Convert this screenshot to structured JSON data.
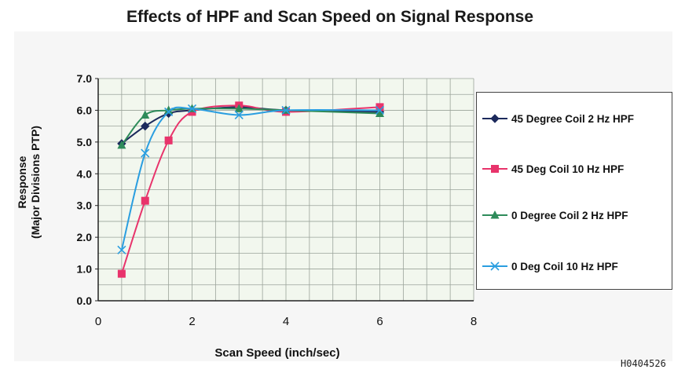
{
  "chart_data": {
    "type": "line",
    "title": "Effects of HPF and Scan Speed on Signal Response",
    "xlabel": "Scan Speed (inch/sec)",
    "ylabel_line1": "Response",
    "ylabel_line2": "(Major Divisions PTP)",
    "xlim": [
      0,
      8
    ],
    "ylim": [
      0,
      7
    ],
    "xticks": [
      "0",
      "2",
      "4",
      "6",
      "8"
    ],
    "yticks": [
      "0.0",
      "1.0",
      "2.0",
      "3.0",
      "4.0",
      "5.0",
      "6.0",
      "7.0"
    ],
    "grid": true,
    "legend_position": "right",
    "series": [
      {
        "name": "45 Degree Coil 2 Hz HPF",
        "color": "#1c2a5c",
        "marker": "diamond",
        "x": [
          0.5,
          1,
          1.5,
          2,
          3,
          4,
          6
        ],
        "y": [
          4.95,
          5.5,
          5.9,
          6.0,
          6.1,
          6.0,
          5.95
        ]
      },
      {
        "name": "45 Deg Coil 10 Hz HPF",
        "color": "#e8336b",
        "marker": "square",
        "x": [
          0.5,
          1,
          1.5,
          2,
          3,
          4,
          6
        ],
        "y": [
          0.85,
          3.15,
          5.05,
          5.95,
          6.15,
          5.95,
          6.1
        ]
      },
      {
        "name": "0 Degree Coil 2 Hz HPF",
        "color": "#2e8b5a",
        "marker": "triangle",
        "x": [
          0.5,
          1,
          1.5,
          2,
          3,
          4,
          6
        ],
        "y": [
          4.9,
          5.85,
          6.0,
          6.05,
          6.05,
          6.0,
          5.9
        ]
      },
      {
        "name": "0 Deg Coil 10 Hz HPF",
        "color": "#2a9ee0",
        "marker": "x",
        "x": [
          0.5,
          1,
          1.5,
          2,
          3,
          4,
          6
        ],
        "y": [
          1.6,
          4.65,
          5.95,
          6.05,
          5.85,
          6.0,
          6.0
        ]
      }
    ]
  },
  "footer": {
    "ref_code": "H0404526"
  }
}
